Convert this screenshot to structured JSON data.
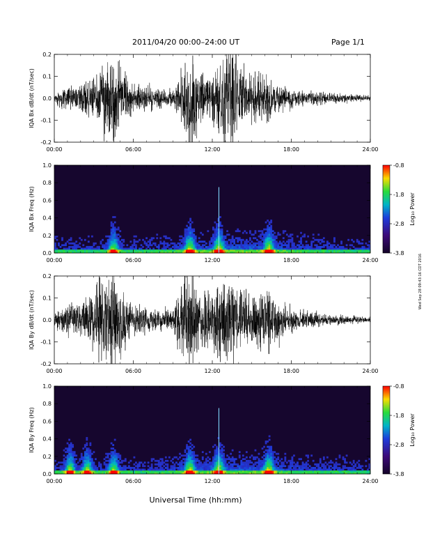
{
  "header": {
    "title": "2011/04/20   00:00–24:00 UT",
    "page": "Page 1/1"
  },
  "side_stamp": "Wed Sep 28 09:43:16 CDT 2016",
  "xlabel": "Universal Time (hh:mm)",
  "colors": {
    "trace": "#000000",
    "spec_bg": "#16062e",
    "axis": "#000000"
  },
  "chart_data": [
    {
      "type": "line",
      "ylabel": "IQA Bx dB/dt (nT/sec)",
      "xlim": [
        0,
        24
      ],
      "ylim": [
        -0.2,
        0.2
      ],
      "xticks": [
        "00:00",
        "06:00",
        "12:00",
        "18:00",
        "24:00"
      ],
      "yticks": [
        "-0.2",
        "-0.1",
        "0.0",
        "0.1",
        "0.2"
      ],
      "x_hours": [
        0,
        1,
        2,
        3,
        4,
        4.5,
        5,
        6,
        7,
        8,
        9,
        10,
        10.5,
        11,
        12,
        13,
        13.5,
        14,
        15,
        16,
        17,
        18,
        19,
        20,
        21,
        22,
        23,
        24
      ],
      "amplitude": [
        0.02,
        0.04,
        0.05,
        0.08,
        0.15,
        0.22,
        0.12,
        0.06,
        0.05,
        0.04,
        0.03,
        0.16,
        0.22,
        0.12,
        0.1,
        0.2,
        0.22,
        0.13,
        0.1,
        0.12,
        0.06,
        0.04,
        0.03,
        0.03,
        0.02,
        0.02,
        0.015,
        0.01
      ]
    },
    {
      "type": "heatmap",
      "ylabel": "IQA Bx Freq (Hz)",
      "xlim": [
        0,
        24
      ],
      "ylim": [
        0,
        1.0
      ],
      "xticks": [
        "00:00",
        "06:00",
        "12:00",
        "18:00",
        "24:00"
      ],
      "yticks": [
        "0.0",
        "0.2",
        "0.4",
        "0.6",
        "0.8",
        "1.0"
      ],
      "colorbar": {
        "label": "Log₁₀ Power",
        "range": [
          -3.8,
          -0.8
        ],
        "ticks": [
          "-0.8",
          "-1.8",
          "-2.8",
          "-3.8"
        ]
      },
      "bursts_hours": [
        4.5,
        10.3,
        12.5,
        16.3
      ]
    },
    {
      "type": "line",
      "ylabel": "IQA By dB/dt (nT/sec)",
      "xlim": [
        0,
        24
      ],
      "ylim": [
        -0.2,
        0.2
      ],
      "xticks": [
        "00:00",
        "06:00",
        "12:00",
        "18:00",
        "24:00"
      ],
      "yticks": [
        "-0.2",
        "-0.1",
        "0.0",
        "0.1",
        "0.2"
      ],
      "x_hours": [
        0,
        1,
        2,
        3,
        4,
        4.5,
        5,
        6,
        7,
        8,
        9,
        10,
        10.5,
        11,
        12,
        13,
        13.5,
        14,
        15,
        16,
        17,
        18,
        19,
        20,
        21,
        22,
        23,
        24
      ],
      "amplitude": [
        0.03,
        0.06,
        0.07,
        0.12,
        0.2,
        0.22,
        0.15,
        0.06,
        0.05,
        0.04,
        0.05,
        0.2,
        0.22,
        0.12,
        0.14,
        0.2,
        0.2,
        0.12,
        0.1,
        0.14,
        0.08,
        0.05,
        0.04,
        0.03,
        0.02,
        0.02,
        0.015,
        0.01
      ]
    },
    {
      "type": "heatmap",
      "ylabel": "IQA By Freq (Hz)",
      "xlim": [
        0,
        24
      ],
      "ylim": [
        0,
        1.0
      ],
      "xticks": [
        "00:00",
        "06:00",
        "12:00",
        "18:00",
        "24:00"
      ],
      "yticks": [
        "0.0",
        "0.2",
        "0.4",
        "0.6",
        "0.8",
        "1.0"
      ],
      "colorbar": {
        "label": "Log₁₀ Power",
        "range": [
          -3.8,
          -0.8
        ],
        "ticks": [
          "-0.8",
          "-1.8",
          "-2.8",
          "-3.8"
        ]
      },
      "bursts_hours": [
        1.2,
        2.5,
        4.5,
        10.3,
        12.5,
        16.3
      ]
    }
  ]
}
